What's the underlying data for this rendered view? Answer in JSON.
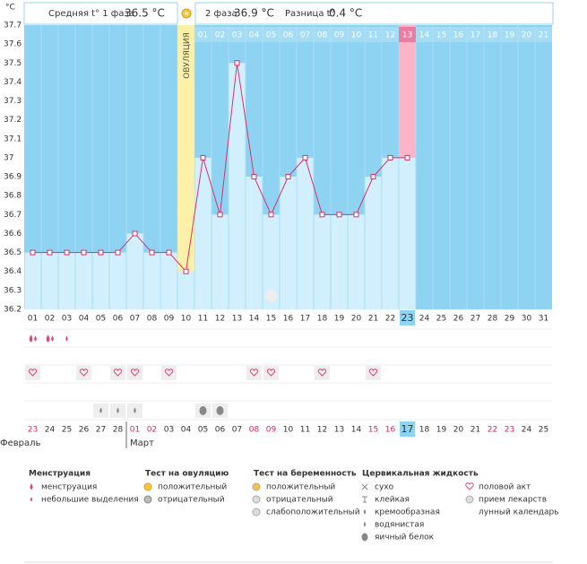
{
  "chart_data": {
    "type": "line",
    "y_unit": "°C",
    "phase1_label": "Средняя t° 1 фаза",
    "phase1_value": "36.5 °C",
    "phase2_label": "2 фаза",
    "phase2_value": "36.9 °C",
    "diff_label": "Разница t°",
    "diff_value": "0.4 °C",
    "ovulation_label": "ОВУЛЯЦИЯ",
    "categories": [
      "01",
      "02",
      "03",
      "04",
      "05",
      "06",
      "07",
      "08",
      "09",
      "10",
      "11",
      "12",
      "13",
      "14",
      "15",
      "16",
      "17",
      "18",
      "19",
      "20",
      "21",
      "22",
      "23",
      "24",
      "25",
      "26",
      "27",
      "28",
      "29",
      "30",
      "31"
    ],
    "values": [
      36.5,
      36.5,
      36.5,
      36.5,
      36.5,
      36.5,
      36.6,
      36.5,
      36.5,
      36.4,
      37.0,
      36.7,
      37.5,
      36.9,
      36.7,
      36.9,
      37.0,
      36.7,
      36.7,
      36.7,
      36.9,
      37.0,
      37.0,
      null,
      null,
      null,
      null,
      null,
      null,
      null,
      null
    ],
    "color": "#d6336c",
    "cycle_days": [
      "01",
      "02",
      "03",
      "04",
      "05",
      "06",
      "07",
      "08",
      "09",
      "10",
      "11",
      "12",
      "13",
      "14",
      "15",
      "16",
      "17",
      "18",
      "19",
      "20",
      "21"
    ],
    "dates": [
      "23",
      "24",
      "25",
      "26",
      "27",
      "28",
      "01",
      "02",
      "03",
      "04",
      "05",
      "06",
      "07",
      "08",
      "09",
      "10",
      "11",
      "12",
      "13",
      "14",
      "15",
      "16",
      "17",
      "18",
      "19",
      "20",
      "21",
      "22",
      "23",
      "24",
      "25"
    ],
    "months": [
      "Февраль",
      "Март"
    ],
    "ylim": [
      36.2,
      37.7
    ],
    "yticks": [
      36.2,
      36.3,
      36.4,
      36.5,
      36.6,
      36.7,
      36.8,
      36.9,
      37,
      37.1,
      37.2,
      37.3,
      37.4,
      37.5,
      37.6,
      37.7
    ],
    "grid": false
  },
  "legend": {
    "groups": [
      {
        "title": "Менструация",
        "items": [
          "менструация",
          "небольшие выделения"
        ]
      },
      {
        "title": "Тест на овуляцию",
        "items": [
          "положительный",
          "отрицательный"
        ]
      },
      {
        "title": "Тест на беременность",
        "items": [
          "положительный",
          "отрицательный",
          "слабоположительный"
        ]
      },
      {
        "title": "Цервикальная жидкость",
        "items": [
          "сухо",
          "клейкая",
          "кремообразная",
          "водянистая",
          "яичный белок"
        ]
      }
    ],
    "other": [
      "половой акт",
      "прием лекарств",
      "лунный календарь"
    ]
  }
}
